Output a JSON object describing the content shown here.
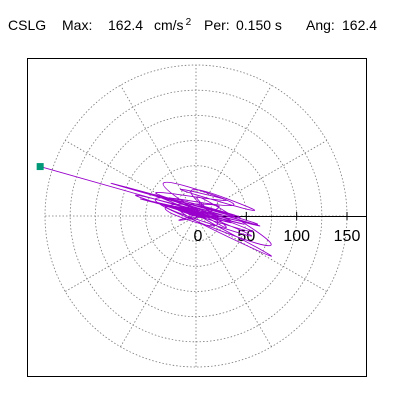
{
  "header": {
    "station": "CSLG",
    "max_label": "Max:",
    "max_value": "162.4",
    "max_unit": "cm/s",
    "max_unit_exponent": "2",
    "period_label": "Per:",
    "period_value": "0.150 s",
    "angle_label": "Ang:",
    "angle_value": "162.4"
  },
  "chart_data": {
    "type": "polar-orbit",
    "radial_ticks": [
      "50",
      "100",
      "150"
    ],
    "radial_tick_values": [
      50,
      100,
      150
    ],
    "radial_rings": [
      25,
      50,
      75,
      100,
      125,
      150
    ],
    "spoke_angle_step_deg": 30,
    "rmax": 162.4,
    "peak": {
      "r": 162.4,
      "angle_deg": 162.4
    },
    "series": [
      {
        "color": "#9900cc",
        "points": [
          [
            0,
            0
          ],
          [
            4,
            1
          ],
          [
            -3,
            2
          ],
          [
            6,
            -2
          ],
          [
            -8,
            3
          ],
          [
            10,
            2
          ],
          [
            -5,
            -4
          ],
          [
            12,
            5
          ],
          [
            -15,
            2
          ],
          [
            20,
            -3
          ],
          [
            -22,
            6
          ],
          [
            30,
            -8
          ],
          [
            -35,
            10
          ],
          [
            40,
            -6
          ],
          [
            -48,
            14
          ],
          [
            55,
            -12
          ],
          [
            -62,
            18
          ],
          [
            70,
            -16
          ],
          [
            -80,
            24
          ],
          [
            95,
            -20
          ],
          [
            -110,
            30
          ],
          [
            125,
            -24
          ],
          [
            -155,
            52
          ],
          [
            130,
            -28
          ],
          [
            -120,
            38
          ],
          [
            110,
            -34
          ],
          [
            -90,
            40
          ],
          [
            100,
            -36
          ],
          [
            -70,
            20
          ],
          [
            80,
            -10
          ],
          [
            -60,
            28
          ],
          [
            65,
            -14
          ],
          [
            -50,
            18
          ],
          [
            115,
            -60
          ],
          [
            -40,
            22
          ],
          [
            70,
            -8
          ],
          [
            -75,
            30
          ],
          [
            60,
            10
          ],
          [
            -45,
            34
          ],
          [
            90,
            -5
          ],
          [
            -30,
            40
          ],
          [
            55,
            -30
          ],
          [
            -65,
            48
          ],
          [
            75,
            2
          ],
          [
            -85,
            28
          ],
          [
            115,
            -50
          ],
          [
            -20,
            36
          ],
          [
            40,
            -20
          ],
          [
            -55,
            12
          ],
          [
            45,
            12
          ],
          [
            -35,
            -8
          ],
          [
            30,
            4
          ],
          [
            -25,
            10
          ],
          [
            18,
            -6
          ],
          [
            -12,
            4
          ],
          [
            8,
            1
          ],
          [
            -4,
            0
          ],
          [
            2,
            1
          ]
        ]
      }
    ]
  }
}
